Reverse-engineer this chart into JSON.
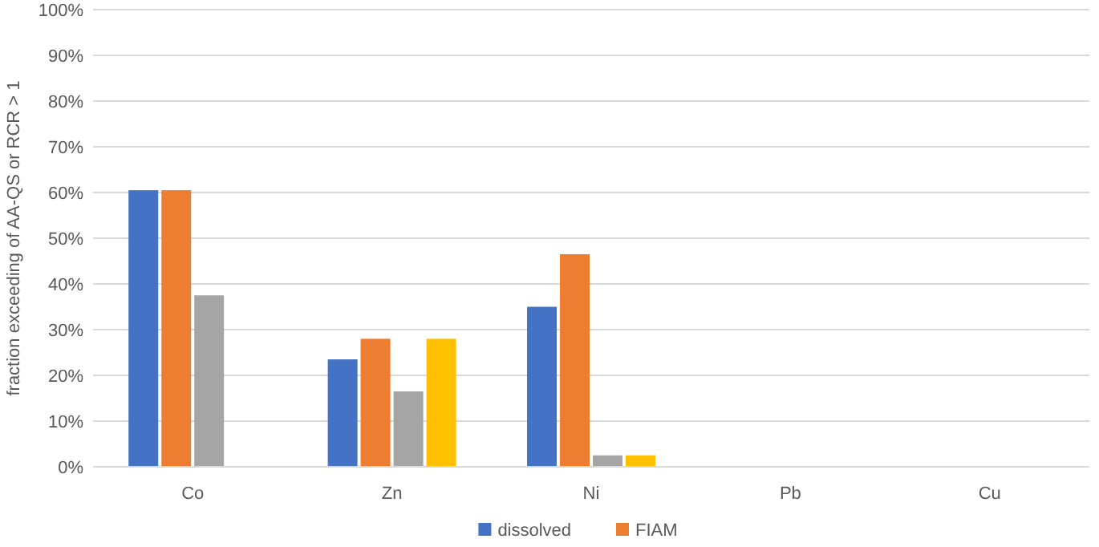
{
  "chart_data": {
    "type": "bar",
    "ylabel": "fraction exceeding of AA-QS or RCR > 1",
    "categories": [
      "Co",
      "Zn",
      "Ni",
      "Pb",
      "Cu"
    ],
    "series": [
      {
        "name": "dissolved",
        "color": "#4472c4",
        "values": [
          60.5,
          23.5,
          35,
          0,
          0
        ]
      },
      {
        "name": "FIAM",
        "color": "#ed7d31",
        "values": [
          60.5,
          28,
          46.5,
          0,
          0
        ]
      },
      {
        "color": "#a5a5a5",
        "values": [
          37.5,
          16.5,
          2.5,
          0,
          0
        ]
      },
      {
        "color": "#ffc000",
        "values": [
          0,
          28,
          2.5,
          0,
          0
        ]
      }
    ],
    "ylim": [
      0,
      100
    ],
    "yticks": [
      {
        "value": 0,
        "label": "0%"
      },
      {
        "value": 10,
        "label": "10%"
      },
      {
        "value": 20,
        "label": "20%"
      },
      {
        "value": 30,
        "label": "30%"
      },
      {
        "value": 40,
        "label": "40%"
      },
      {
        "value": 50,
        "label": "50%"
      },
      {
        "value": 60,
        "label": "60%"
      },
      {
        "value": 70,
        "label": "70%"
      },
      {
        "value": 80,
        "label": "80%"
      },
      {
        "value": 90,
        "label": "90%"
      },
      {
        "value": 100,
        "label": "100%"
      }
    ],
    "grid": "y",
    "legend": "bottom"
  }
}
